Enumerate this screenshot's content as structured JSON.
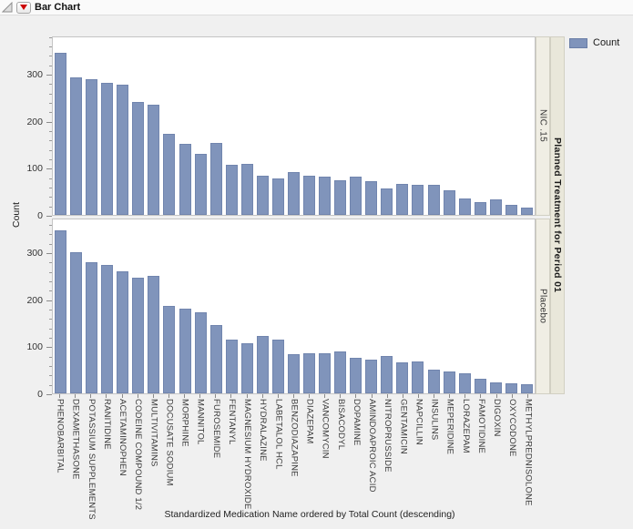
{
  "title_bar": {
    "title": "Bar Chart"
  },
  "legend": {
    "label": "Count",
    "swatch_color": "#8094bb"
  },
  "y_axis": {
    "title": "Count",
    "major_ticks": [
      0,
      100,
      200,
      300
    ],
    "minor_step": 20,
    "max": 380
  },
  "x_axis": {
    "title": "Standardized Medication Name ordered by Total Count (descending)"
  },
  "group_strip": {
    "title": "Planned Treatment for Period 01",
    "groups": [
      "NIC .15",
      "Placebo"
    ]
  },
  "chart_data": {
    "type": "bar",
    "title": "Bar Chart",
    "xlabel": "Standardized Medication Name ordered by Total Count (descending)",
    "ylabel": "Count",
    "ylim": [
      0,
      380
    ],
    "grid": false,
    "legend_position": "top-right",
    "legend_entries": [
      "Count"
    ],
    "bar_color": "#8094bb",
    "panel_variable": "Planned Treatment for Period 01",
    "categories": [
      "PHENOBARBITAL",
      "DEXAMETHASONE",
      "POTASSIUM SUPPLEMENTS",
      "RANITIDINE",
      "ACETAMINOPHEN",
      "CODEINE COMPOUND 1/2",
      "MULTIVITAMINS",
      "DOCUSATE SODIUM",
      "MORPHINE",
      "MANNITOL",
      "FUROSEMIDE",
      "FENTANYL",
      "MAGNESIUM HYDROXIDE",
      "HYDRALAZINE",
      "LABETALOL HCL",
      "BENZODIAZAPINE",
      "DIAZEPAM",
      "VANCOMYCIN",
      "BISACODYL",
      "DOPAMINE",
      "AMINDOAPROIC ACID",
      "NITROPRUSSIDE",
      "GENTAMICIN",
      "NAPCILLIN",
      "INSULINS",
      "MEPERIDINE",
      "LORAZEPAM",
      "FAMOTIDINE",
      "DIGOXIN",
      "OXYCODONE",
      "METHYLPREDNISOLONE"
    ],
    "series": [
      {
        "name": "NIC .15",
        "values": [
          345,
          292,
          288,
          281,
          276,
          240,
          234,
          173,
          151,
          129,
          153,
          106,
          109,
          84,
          77,
          90,
          84,
          81,
          74,
          82,
          72,
          57,
          66,
          64,
          64,
          53,
          34,
          28,
          32,
          21,
          15
        ]
      },
      {
        "name": "Placebo",
        "values": [
          347,
          300,
          279,
          273,
          259,
          245,
          249,
          185,
          179,
          172,
          145,
          115,
          106,
          122,
          115,
          84,
          86,
          85,
          89,
          76,
          71,
          79,
          66,
          67,
          50,
          47,
          43,
          31,
          24,
          22,
          20
        ]
      }
    ]
  }
}
